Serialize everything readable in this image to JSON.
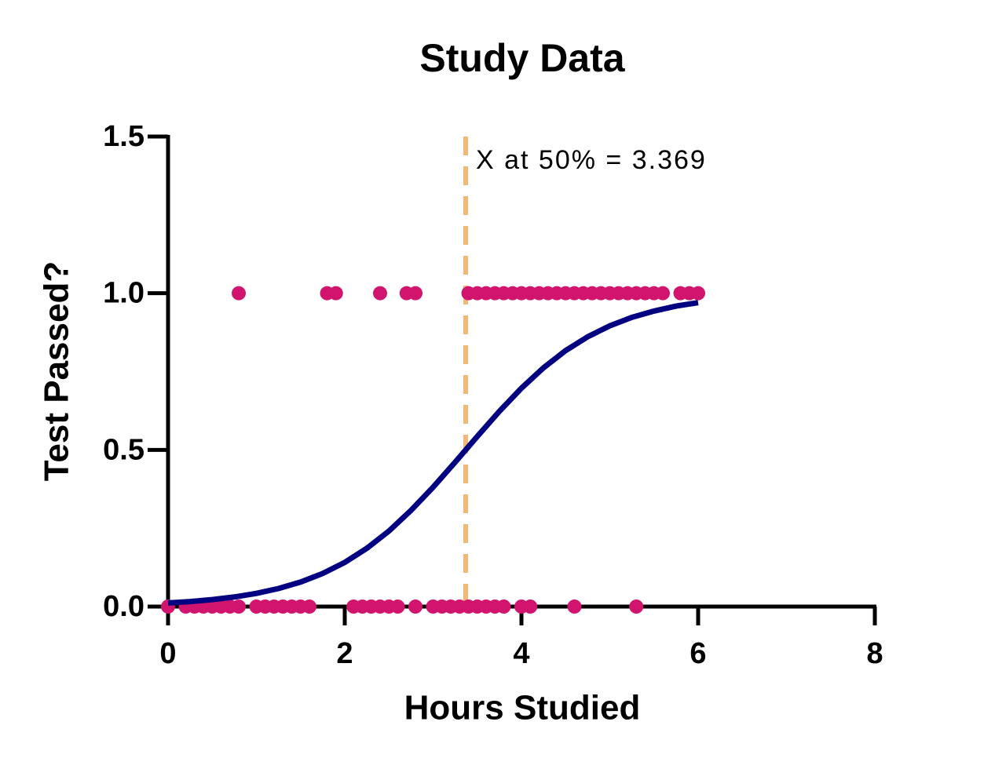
{
  "chart_data": {
    "type": "scatter",
    "title": "Study Data",
    "x_label": "Hours Studied",
    "y_label": "Test Passed?",
    "xlim": [
      0,
      8
    ],
    "ylim": [
      0,
      1.5
    ],
    "xticks": [
      0,
      2,
      4,
      6,
      8
    ],
    "yticks": [
      {
        "value": 0,
        "label": "0.0"
      },
      {
        "value": 0.5,
        "label": "0.5"
      },
      {
        "value": 1,
        "label": "1.0"
      },
      {
        "value": 1.5,
        "label": "1.5"
      }
    ],
    "grid": false,
    "series": [
      {
        "type": "scatter",
        "color": "#d1156f",
        "x": [
          0.8,
          1.8,
          1.9,
          2.4,
          2.7,
          2.8,
          3.4,
          3.5,
          3.6,
          3.7,
          3.8,
          3.9,
          4.0,
          4.1,
          4.2,
          4.3,
          4.4,
          4.5,
          4.6,
          4.7,
          4.8,
          4.9,
          5.0,
          5.1,
          5.2,
          5.3,
          5.4,
          5.5,
          5.6,
          5.8,
          5.9,
          6.0,
          0.0,
          0.2,
          0.3,
          0.4,
          0.5,
          0.6,
          0.7,
          0.8,
          1.0,
          1.1,
          1.2,
          1.3,
          1.4,
          1.5,
          1.6,
          2.1,
          2.2,
          2.3,
          2.4,
          2.5,
          2.6,
          2.8,
          3.0,
          3.1,
          3.2,
          3.3,
          3.4,
          3.5,
          3.6,
          3.7,
          3.8,
          4.0,
          4.1,
          4.6,
          5.3
        ],
        "values": [
          1,
          1,
          1,
          1,
          1,
          1,
          1,
          1,
          1,
          1,
          1,
          1,
          1,
          1,
          1,
          1,
          1,
          1,
          1,
          1,
          1,
          1,
          1,
          1,
          1,
          1,
          1,
          1,
          1,
          1,
          1,
          1,
          0,
          0,
          0,
          0,
          0,
          0,
          0,
          0,
          0,
          0,
          0,
          0,
          0,
          0,
          0,
          0,
          0,
          0,
          0,
          0,
          0,
          0,
          0,
          0,
          0,
          0,
          0,
          0,
          0,
          0,
          0,
          0,
          0,
          0,
          0
        ]
      },
      {
        "type": "line",
        "color": "#000080",
        "x": [
          0,
          0.25,
          0.5,
          0.75,
          1,
          1.25,
          1.5,
          1.75,
          2,
          2.25,
          2.5,
          2.75,
          3,
          3.25,
          3.5,
          3.75,
          4,
          4.25,
          4.5,
          4.75,
          5,
          5.25,
          5.5,
          5.75,
          6
        ],
        "values": [
          0.0116,
          0.016,
          0.0222,
          0.0306,
          0.042,
          0.0575,
          0.0782,
          0.1056,
          0.141,
          0.186,
          0.241,
          0.307,
          0.381,
          0.461,
          0.543,
          0.623,
          0.697,
          0.762,
          0.817,
          0.861,
          0.896,
          0.923,
          0.943,
          0.959,
          0.97
        ]
      }
    ],
    "annotation": {
      "text": "X at 50% = 3.369",
      "x": 3.369,
      "color": "#f2b87a"
    }
  }
}
